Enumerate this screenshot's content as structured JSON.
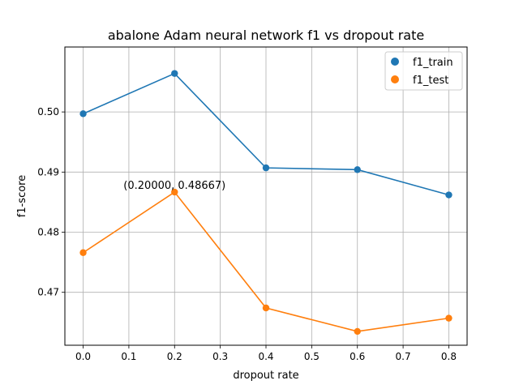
{
  "chart_data": {
    "type": "line",
    "title": "abalone Adam neural network f1 vs dropout rate",
    "xlabel": "dropout rate",
    "ylabel": "f1-score",
    "x": [
      0.0,
      0.2,
      0.4,
      0.6,
      0.8
    ],
    "xlim": [
      -0.04,
      0.84
    ],
    "ylim": [
      0.4612,
      0.5108
    ],
    "x_ticks": [
      0.0,
      0.1,
      0.2,
      0.3,
      0.4,
      0.5,
      0.6,
      0.7,
      0.8
    ],
    "x_tick_labels": [
      "0.0",
      "0.1",
      "0.2",
      "0.3",
      "0.4",
      "0.5",
      "0.6",
      "0.7",
      "0.8"
    ],
    "y_ticks": [
      0.47,
      0.48,
      0.49,
      0.5
    ],
    "y_tick_labels": [
      "0.47",
      "0.48",
      "0.49",
      "0.50"
    ],
    "grid": true,
    "legend_position": "top-right",
    "series": [
      {
        "name": "f1_train",
        "color": "#1f77b4",
        "values": [
          0.4997,
          0.5064,
          0.4907,
          0.4904,
          0.4862
        ]
      },
      {
        "name": "f1_test",
        "color": "#ff7f0e",
        "values": [
          0.4766,
          0.48667,
          0.4674,
          0.4635,
          0.4657
        ]
      }
    ],
    "annotations": [
      {
        "text": "(0.20000, 0.48667)",
        "x": 0.2,
        "y": 0.48667
      }
    ]
  }
}
